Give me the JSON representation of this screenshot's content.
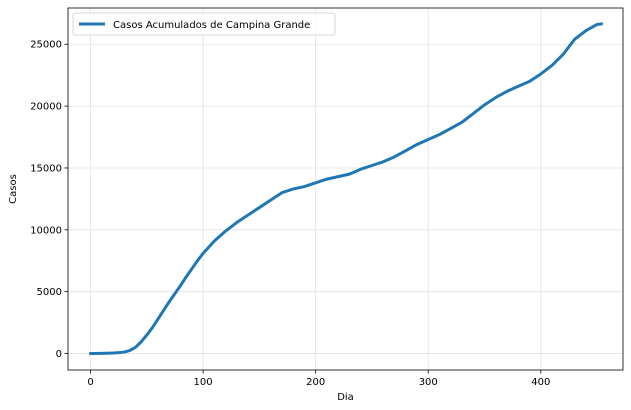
{
  "chart_data": {
    "type": "line",
    "title": "",
    "xlabel": "Dia",
    "ylabel": "Casos",
    "xlim": [
      -20,
      473
    ],
    "ylim": [
      -1330,
      27930
    ],
    "xticks": [
      0,
      100,
      200,
      300,
      400
    ],
    "yticks": [
      0,
      5000,
      10000,
      15000,
      20000,
      25000
    ],
    "grid": true,
    "legend_position": "top-left",
    "series": [
      {
        "name": "Casos Acumulados de Campina Grande",
        "color": "#1f77b4",
        "x": [
          0,
          10,
          20,
          25,
          30,
          35,
          40,
          45,
          50,
          55,
          60,
          65,
          70,
          75,
          80,
          85,
          90,
          95,
          100,
          110,
          120,
          130,
          140,
          150,
          160,
          170,
          180,
          190,
          200,
          210,
          220,
          230,
          240,
          250,
          260,
          270,
          280,
          290,
          300,
          310,
          320,
          330,
          340,
          350,
          360,
          370,
          380,
          390,
          400,
          410,
          420,
          430,
          440,
          450,
          454
        ],
        "values": [
          0,
          10,
          40,
          70,
          120,
          250,
          500,
          950,
          1500,
          2100,
          2800,
          3500,
          4200,
          4850,
          5500,
          6200,
          6850,
          7500,
          8100,
          9100,
          9900,
          10600,
          11200,
          11800,
          12400,
          13000,
          13300,
          13500,
          13800,
          14100,
          14300,
          14500,
          14900,
          15200,
          15500,
          15900,
          16400,
          16900,
          17300,
          17700,
          18200,
          18700,
          19400,
          20100,
          20700,
          21200,
          21600,
          22000,
          22600,
          23300,
          24200,
          25400,
          26100,
          26600,
          26650
        ]
      }
    ]
  }
}
